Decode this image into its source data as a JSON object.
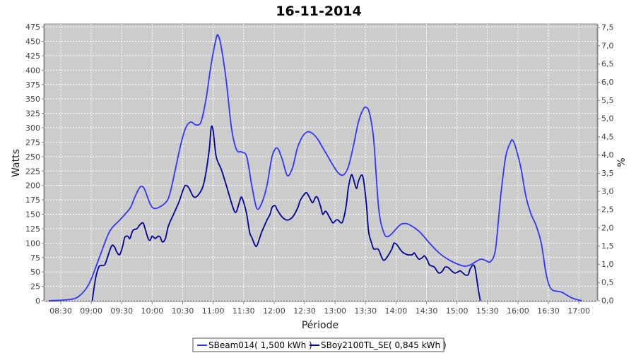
{
  "chart_data": {
    "type": "line",
    "title": "16-11-2014",
    "xlabel": "Période",
    "ylabel": "Watts",
    "y2label": "%",
    "x_ticks": [
      "08:30",
      "09:00",
      "09:30",
      "10:00",
      "10:30",
      "11:00",
      "11:30",
      "12:00",
      "12:30",
      "13:00",
      "13:30",
      "14:00",
      "14:30",
      "15:00",
      "15:30",
      "16:00",
      "16:30",
      "17:00"
    ],
    "y_ticks": [
      "0",
      "25",
      "50",
      "75",
      "100",
      "125",
      "150",
      "175",
      "200",
      "225",
      "250",
      "275",
      "300",
      "325",
      "350",
      "375",
      "400",
      "425",
      "450",
      "475"
    ],
    "y2_ticks": [
      "0,0",
      "0,5",
      "1,0",
      "1,5",
      "2,0",
      "2,5",
      "3,0",
      "3,5",
      "4,0",
      "4,5",
      "5,0",
      "5,5",
      "6,0",
      "6,5",
      "7,0",
      "7,5"
    ],
    "ylim": [
      0,
      480
    ],
    "y2lim": [
      0,
      7.6
    ],
    "xlim": [
      "08:14",
      "17:18"
    ],
    "grid": true,
    "legend_position": "bottom",
    "series": [
      {
        "name": "SBeam014( 1,500 kWh )",
        "color": "#3333ff",
        "points": [
          [
            "08:18",
            0
          ],
          [
            "08:38",
            2
          ],
          [
            "08:48",
            8
          ],
          [
            "08:58",
            30
          ],
          [
            "09:08",
            75
          ],
          [
            "09:18",
            120
          ],
          [
            "09:28",
            140
          ],
          [
            "09:38",
            160
          ],
          [
            "09:43",
            180
          ],
          [
            "09:48",
            197
          ],
          [
            "09:52",
            195
          ],
          [
            "09:58",
            168
          ],
          [
            "10:03",
            160
          ],
          [
            "10:13",
            170
          ],
          [
            "10:18",
            190
          ],
          [
            "10:28",
            270
          ],
          [
            "10:33",
            300
          ],
          [
            "10:38",
            310
          ],
          [
            "10:43",
            305
          ],
          [
            "10:48",
            310
          ],
          [
            "10:53",
            350
          ],
          [
            "10:58",
            410
          ],
          [
            "11:03",
            455
          ],
          [
            "11:05",
            460
          ],
          [
            "11:08",
            440
          ],
          [
            "11:13",
            380
          ],
          [
            "11:18",
            300
          ],
          [
            "11:23",
            262
          ],
          [
            "11:28",
            258
          ],
          [
            "11:33",
            250
          ],
          [
            "11:38",
            200
          ],
          [
            "11:43",
            160
          ],
          [
            "11:48",
            170
          ],
          [
            "11:53",
            200
          ],
          [
            "11:58",
            250
          ],
          [
            "12:03",
            265
          ],
          [
            "12:08",
            245
          ],
          [
            "12:13",
            217
          ],
          [
            "12:18",
            230
          ],
          [
            "12:23",
            265
          ],
          [
            "12:28",
            285
          ],
          [
            "12:33",
            293
          ],
          [
            "12:38",
            290
          ],
          [
            "12:43",
            280
          ],
          [
            "12:48",
            265
          ],
          [
            "12:53",
            250
          ],
          [
            "12:58",
            235
          ],
          [
            "13:03",
            222
          ],
          [
            "13:08",
            218
          ],
          [
            "13:13",
            232
          ],
          [
            "13:18",
            268
          ],
          [
            "13:23",
            310
          ],
          [
            "13:28",
            333
          ],
          [
            "13:31",
            335
          ],
          [
            "13:34",
            325
          ],
          [
            "13:38",
            280
          ],
          [
            "13:43",
            160
          ],
          [
            "13:48",
            118
          ],
          [
            "13:53",
            112
          ],
          [
            "14:03",
            130
          ],
          [
            "14:08",
            134
          ],
          [
            "14:13",
            132
          ],
          [
            "14:23",
            120
          ],
          [
            "14:33",
            100
          ],
          [
            "14:43",
            82
          ],
          [
            "14:53",
            70
          ],
          [
            "15:03",
            62
          ],
          [
            "15:08",
            60
          ],
          [
            "15:13",
            62
          ],
          [
            "15:23",
            72
          ],
          [
            "15:28",
            70
          ],
          [
            "15:33",
            68
          ],
          [
            "15:38",
            90
          ],
          [
            "15:43",
            180
          ],
          [
            "15:48",
            250
          ],
          [
            "15:53",
            276
          ],
          [
            "15:55",
            278
          ],
          [
            "15:58",
            265
          ],
          [
            "16:03",
            230
          ],
          [
            "16:08",
            180
          ],
          [
            "16:13",
            150
          ],
          [
            "16:18",
            130
          ],
          [
            "16:23",
            100
          ],
          [
            "16:28",
            45
          ],
          [
            "16:33",
            20
          ],
          [
            "16:43",
            15
          ],
          [
            "16:53",
            5
          ],
          [
            "17:03",
            0
          ]
        ]
      },
      {
        "name": "SBoy2100TL_SE( 0,845 kWh )",
        "color": "#000099",
        "points": [
          [
            "09:01",
            0
          ],
          [
            "09:03",
            25
          ],
          [
            "09:05",
            45
          ],
          [
            "09:08",
            60
          ],
          [
            "09:13",
            62
          ],
          [
            "09:15",
            70
          ],
          [
            "09:20",
            95
          ],
          [
            "09:23",
            93
          ],
          [
            "09:25",
            85
          ],
          [
            "09:28",
            80
          ],
          [
            "09:31",
            95
          ],
          [
            "09:33",
            110
          ],
          [
            "09:36",
            112
          ],
          [
            "09:38",
            108
          ],
          [
            "09:41",
            122
          ],
          [
            "09:45",
            125
          ],
          [
            "09:48",
            132
          ],
          [
            "09:51",
            135
          ],
          [
            "09:53",
            125
          ],
          [
            "09:56",
            108
          ],
          [
            "09:58",
            105
          ],
          [
            "10:00",
            112
          ],
          [
            "10:03",
            108
          ],
          [
            "10:06",
            112
          ],
          [
            "10:08",
            110
          ],
          [
            "10:10",
            102
          ],
          [
            "10:13",
            108
          ],
          [
            "10:16",
            130
          ],
          [
            "10:21",
            150
          ],
          [
            "10:26",
            170
          ],
          [
            "10:31",
            195
          ],
          [
            "10:33",
            200
          ],
          [
            "10:36",
            196
          ],
          [
            "10:41",
            180
          ],
          [
            "10:46",
            185
          ],
          [
            "10:51",
            205
          ],
          [
            "10:56",
            260
          ],
          [
            "10:58",
            300
          ],
          [
            "11:00",
            295
          ],
          [
            "11:03",
            250
          ],
          [
            "11:08",
            228
          ],
          [
            "11:13",
            200
          ],
          [
            "11:18",
            170
          ],
          [
            "11:21",
            155
          ],
          [
            "11:23",
            155
          ],
          [
            "11:26",
            172
          ],
          [
            "11:28",
            180
          ],
          [
            "11:31",
            165
          ],
          [
            "11:33",
            150
          ],
          [
            "11:36",
            118
          ],
          [
            "11:38",
            110
          ],
          [
            "11:41",
            97
          ],
          [
            "11:43",
            95
          ],
          [
            "11:46",
            110
          ],
          [
            "11:48",
            120
          ],
          [
            "11:53",
            140
          ],
          [
            "11:56",
            150
          ],
          [
            "11:58",
            162
          ],
          [
            "12:01",
            165
          ],
          [
            "12:03",
            158
          ],
          [
            "12:08",
            145
          ],
          [
            "12:13",
            140
          ],
          [
            "12:18",
            145
          ],
          [
            "12:23",
            160
          ],
          [
            "12:26",
            175
          ],
          [
            "12:31",
            187
          ],
          [
            "12:33",
            185
          ],
          [
            "12:36",
            175
          ],
          [
            "12:38",
            170
          ],
          [
            "12:41",
            180
          ],
          [
            "12:43",
            178
          ],
          [
            "12:46",
            162
          ],
          [
            "12:48",
            150
          ],
          [
            "12:51",
            155
          ],
          [
            "12:56",
            140
          ],
          [
            "12:58",
            135
          ],
          [
            "13:01",
            140
          ],
          [
            "13:03",
            140
          ],
          [
            "13:06",
            135
          ],
          [
            "13:08",
            140
          ],
          [
            "13:11",
            165
          ],
          [
            "13:13",
            195
          ],
          [
            "13:16",
            218
          ],
          [
            "13:18",
            212
          ],
          [
            "13:21",
            195
          ],
          [
            "13:23",
            207
          ],
          [
            "13:26",
            218
          ],
          [
            "13:28",
            210
          ],
          [
            "13:31",
            165
          ],
          [
            "13:33",
            120
          ],
          [
            "13:36",
            100
          ],
          [
            "13:38",
            90
          ],
          [
            "13:41",
            90
          ],
          [
            "13:43",
            88
          ],
          [
            "13:46",
            75
          ],
          [
            "13:48",
            70
          ],
          [
            "13:51",
            75
          ],
          [
            "13:56",
            90
          ],
          [
            "13:58",
            100
          ],
          [
            "14:01",
            97
          ],
          [
            "14:03",
            92
          ],
          [
            "14:06",
            85
          ],
          [
            "14:11",
            80
          ],
          [
            "14:16",
            80
          ],
          [
            "14:18",
            83
          ],
          [
            "14:21",
            75
          ],
          [
            "14:23",
            72
          ],
          [
            "14:26",
            75
          ],
          [
            "14:28",
            78
          ],
          [
            "14:31",
            70
          ],
          [
            "14:33",
            62
          ],
          [
            "14:36",
            60
          ],
          [
            "14:38",
            58
          ],
          [
            "14:41",
            50
          ],
          [
            "14:43",
            48
          ],
          [
            "14:46",
            52
          ],
          [
            "14:48",
            58
          ],
          [
            "14:51",
            58
          ],
          [
            "14:53",
            55
          ],
          [
            "14:56",
            50
          ],
          [
            "14:58",
            48
          ],
          [
            "15:01",
            50
          ],
          [
            "15:03",
            52
          ],
          [
            "15:06",
            48
          ],
          [
            "15:08",
            45
          ],
          [
            "15:11",
            45
          ],
          [
            "15:13",
            55
          ],
          [
            "15:16",
            62
          ],
          [
            "15:18",
            55
          ],
          [
            "15:21",
            20
          ],
          [
            "15:23",
            0
          ]
        ]
      }
    ]
  }
}
